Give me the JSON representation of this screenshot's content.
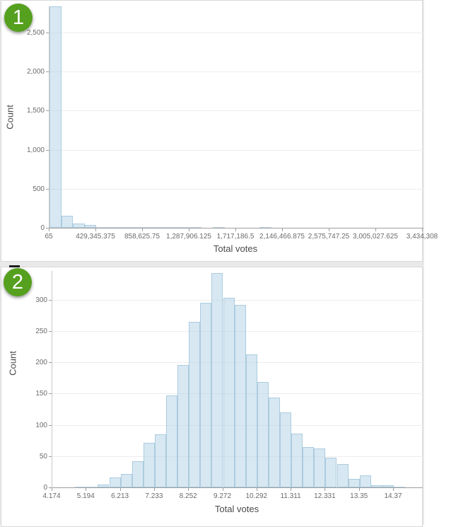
{
  "colors": {
    "page_bg": "#e9e9e9",
    "card_bg": "#ffffff",
    "card_border": "#d8d8d8",
    "bar_fill": "rgba(176,210,229,0.5)",
    "bar_stroke": "rgba(137,180,207,0.55)",
    "grid_line": "#ededed",
    "axis_line": "#9e9e9e",
    "y_axis_line": "#c8c8c8",
    "tick_text": "#6b6b6b",
    "axis_title_text": "#4a4a4a",
    "badge_green": "#55a01e",
    "badge_text": "#ffffff",
    "dash_color": "#1c1c1c"
  },
  "chart_data": [
    {
      "type": "bar",
      "badge": "1",
      "xlabel": "Total votes",
      "ylabel": "Count",
      "bin_start": 65,
      "bin_width": 107320.09,
      "counts": [
        2833,
        154,
        57,
        33,
        12,
        8,
        12,
        4,
        2,
        1,
        1,
        1,
        1,
        0,
        1,
        0,
        0,
        0,
        1,
        0,
        0,
        0,
        0,
        0,
        0,
        0,
        0,
        0,
        0,
        0,
        0,
        0
      ],
      "x_tick_labels": [
        "65",
        "429,345.375",
        "858,625.75",
        "1,287,906.125",
        "1,717,186.5",
        "2,146,466.875",
        "2,575,747.25",
        "3,005,027.625",
        "3,434,308"
      ],
      "y_ticks": [
        0,
        500,
        1000,
        1500,
        2000,
        2500
      ],
      "y_tick_labels": [
        "0",
        "500",
        "1,000",
        "1,500",
        "2,000",
        "2,500"
      ],
      "ylim": [
        0,
        2833
      ],
      "grid": "horizontal",
      "legend": "none"
    },
    {
      "type": "bar",
      "badge": "2",
      "xlabel": "Total votes",
      "ylabel": "Count",
      "bin_start": 4.174,
      "bin_width": 0.33987,
      "counts": [
        0,
        0,
        1,
        1,
        5,
        16,
        22,
        42,
        71,
        85,
        147,
        196,
        265,
        295,
        343,
        303,
        292,
        213,
        169,
        144,
        120,
        86,
        64,
        62,
        48,
        37,
        14,
        19,
        3,
        3,
        1
      ],
      "x_tick_labels": [
        "4.174",
        "5.194",
        "6.213",
        "7.233",
        "8.252",
        "9.272",
        "10.292",
        "11.311",
        "12.331",
        "13.35",
        "14.37"
      ],
      "y_ticks": [
        0,
        50,
        100,
        150,
        200,
        250,
        300
      ],
      "y_tick_labels": [
        "0",
        "50",
        "100",
        "150",
        "200",
        "250",
        "300"
      ],
      "ylim": [
        0,
        346
      ],
      "grid": "horizontal",
      "legend": "none"
    }
  ]
}
